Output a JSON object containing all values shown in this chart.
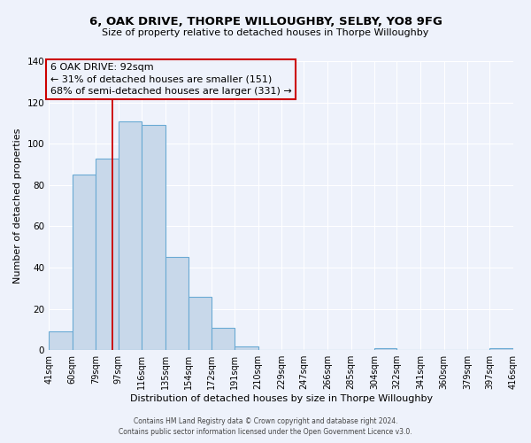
{
  "title": "6, OAK DRIVE, THORPE WILLOUGHBY, SELBY, YO8 9FG",
  "subtitle": "Size of property relative to detached houses in Thorpe Willoughby",
  "xlabel": "Distribution of detached houses by size in Thorpe Willoughby",
  "ylabel": "Number of detached properties",
  "bin_edges": [
    41,
    60,
    79,
    97,
    116,
    135,
    154,
    172,
    191,
    210,
    229,
    247,
    266,
    285,
    304,
    322,
    341,
    360,
    379,
    397,
    416
  ],
  "bar_heights": [
    9,
    85,
    93,
    111,
    109,
    45,
    26,
    11,
    2,
    0,
    0,
    0,
    0,
    0,
    1,
    0,
    0,
    0,
    0,
    1
  ],
  "bar_color": "#c8d8ea",
  "bar_edge_color": "#6aaad4",
  "vline_x": 92,
  "vline_color": "#cc0000",
  "ylim": [
    0,
    140
  ],
  "yticks": [
    0,
    20,
    40,
    60,
    80,
    100,
    120,
    140
  ],
  "annotation_title": "6 OAK DRIVE: 92sqm",
  "annotation_line1": "← 31% of detached houses are smaller (151)",
  "annotation_line2": "68% of semi-detached houses are larger (331) →",
  "annotation_box_color": "#cc0000",
  "footer_line1": "Contains HM Land Registry data © Crown copyright and database right 2024.",
  "footer_line2": "Contains public sector information licensed under the Open Government Licence v3.0.",
  "tick_labels": [
    "41sqm",
    "60sqm",
    "79sqm",
    "97sqm",
    "116sqm",
    "135sqm",
    "154sqm",
    "172sqm",
    "191sqm",
    "210sqm",
    "229sqm",
    "247sqm",
    "266sqm",
    "285sqm",
    "304sqm",
    "322sqm",
    "341sqm",
    "360sqm",
    "379sqm",
    "397sqm",
    "416sqm"
  ],
  "background_color": "#eef2fb",
  "grid_color": "#ffffff",
  "title_fontsize": 9.5,
  "subtitle_fontsize": 8,
  "axis_label_fontsize": 8,
  "tick_fontsize": 7,
  "annotation_fontsize": 8,
  "footer_fontsize": 5.5
}
